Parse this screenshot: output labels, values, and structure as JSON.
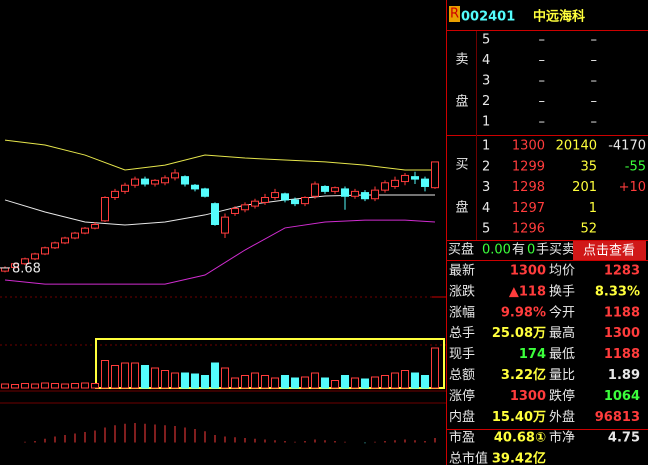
{
  "chart": {
    "price_ylim": [
      7.78,
      19.6
    ],
    "candles": [
      [
        8.55,
        8.68,
        8.75,
        8.5
      ],
      [
        8.7,
        8.85,
        8.9,
        8.65
      ],
      [
        8.85,
        9.05,
        9.1,
        8.8
      ],
      [
        9.05,
        9.25,
        9.3,
        9.0
      ],
      [
        9.25,
        9.5,
        9.55,
        9.2
      ],
      [
        9.5,
        9.7,
        9.75,
        9.45
      ],
      [
        9.7,
        9.9,
        9.95,
        9.65
      ],
      [
        9.9,
        10.1,
        10.15,
        9.85
      ],
      [
        10.1,
        10.3,
        10.35,
        10.05
      ],
      [
        10.3,
        10.45,
        10.55,
        10.25
      ],
      [
        10.6,
        11.55,
        11.6,
        10.55
      ],
      [
        11.55,
        11.8,
        11.9,
        11.45
      ],
      [
        11.8,
        12.05,
        12.15,
        11.7
      ],
      [
        12.05,
        12.3,
        12.4,
        11.95
      ],
      [
        12.3,
        12.1,
        12.4,
        12.0
      ],
      [
        12.1,
        12.25,
        12.3,
        12.0
      ],
      [
        12.15,
        12.35,
        12.45,
        12.05
      ],
      [
        12.35,
        12.55,
        12.7,
        12.25
      ],
      [
        12.4,
        12.1,
        12.45,
        12.0
      ],
      [
        12.05,
        11.9,
        12.1,
        11.8
      ],
      [
        11.9,
        11.6,
        11.95,
        11.55
      ],
      [
        11.3,
        10.45,
        11.35,
        10.4
      ],
      [
        10.1,
        10.75,
        10.9,
        9.9
      ],
      [
        10.9,
        11.1,
        11.2,
        10.8
      ],
      [
        11.05,
        11.25,
        11.35,
        10.95
      ],
      [
        11.2,
        11.4,
        11.5,
        11.1
      ],
      [
        11.35,
        11.55,
        11.7,
        11.25
      ],
      [
        11.55,
        11.75,
        11.9,
        11.45
      ],
      [
        11.7,
        11.45,
        11.75,
        11.35
      ],
      [
        11.45,
        11.3,
        11.55,
        11.2
      ],
      [
        11.3,
        11.55,
        11.6,
        11.2
      ],
      [
        11.6,
        12.1,
        12.2,
        11.5
      ],
      [
        12.0,
        11.8,
        12.05,
        11.7
      ],
      [
        11.8,
        11.95,
        12.0,
        11.7
      ],
      [
        11.9,
        11.6,
        12.0,
        11.05
      ],
      [
        11.6,
        11.8,
        11.9,
        11.5
      ],
      [
        11.75,
        11.5,
        11.85,
        11.4
      ],
      [
        11.5,
        11.85,
        12.0,
        11.4
      ],
      [
        11.85,
        12.15,
        12.25,
        11.75
      ],
      [
        12.0,
        12.25,
        12.4,
        11.9
      ],
      [
        12.2,
        12.45,
        12.55,
        12.05
      ],
      [
        12.4,
        12.3,
        12.6,
        12.1
      ],
      [
        12.3,
        12.0,
        12.4,
        11.8
      ],
      [
        11.95,
        13.0,
        13.0,
        11.9
      ]
    ],
    "bands": {
      "x": [
        0,
        4,
        8,
        12,
        16,
        20,
        24,
        28,
        32,
        36,
        40,
        43
      ],
      "upper": {
        "color": "#e6e64c",
        "values": [
          13.89,
          13.69,
          13.28,
          12.67,
          12.87,
          13.28,
          13.16,
          13.08,
          13.0,
          12.87,
          12.67,
          12.67
        ]
      },
      "middle": {
        "color": "#e8e8e8",
        "values": [
          11.45,
          10.96,
          10.55,
          10.43,
          10.55,
          10.84,
          11.24,
          11.45,
          11.61,
          11.65,
          11.65,
          11.65
        ]
      },
      "lower": {
        "color": "#d02cd0",
        "values": [
          8.19,
          8.02,
          8.02,
          8.02,
          8.02,
          8.39,
          9.41,
          10.31,
          10.55,
          10.63,
          10.63,
          10.55
        ]
      }
    },
    "low_marker": {
      "value": 8.68,
      "label": "8.68"
    },
    "volume_ylim": [
      0,
      100
    ],
    "volume": [
      8,
      7,
      9,
      8,
      10,
      9,
      8,
      9,
      10,
      9,
      55,
      45,
      50,
      50,
      45,
      40,
      35,
      30,
      30,
      28,
      25,
      50,
      40,
      20,
      25,
      30,
      25,
      20,
      25,
      20,
      22,
      30,
      20,
      15,
      25,
      20,
      18,
      22,
      25,
      30,
      35,
      30,
      25,
      80
    ],
    "macd_ylim": [
      -0.3,
      0.5
    ],
    "macd": [
      0.0,
      0.0,
      0.01,
      0.02,
      0.05,
      0.08,
      0.1,
      0.12,
      0.14,
      0.16,
      0.2,
      0.23,
      0.25,
      0.26,
      0.25,
      0.24,
      0.23,
      0.22,
      0.2,
      0.18,
      0.15,
      0.1,
      0.08,
      0.07,
      0.06,
      0.05,
      0.04,
      0.03,
      0.02,
      0.01,
      0.02,
      0.04,
      0.03,
      0.02,
      0.01,
      0.0,
      -0.01,
      0.01,
      0.02,
      0.03,
      0.04,
      0.03,
      0.02,
      0.06
    ]
  },
  "quote": {
    "badge": "R",
    "code": "002401",
    "name": "中远海科",
    "sell_label": [
      "卖",
      "盘"
    ],
    "sell": [
      [
        "5",
        "–",
        "–"
      ],
      [
        "4",
        "–",
        "–"
      ],
      [
        "3",
        "–",
        "–"
      ],
      [
        "2",
        "–",
        "–"
      ],
      [
        "1",
        "–",
        "–"
      ]
    ],
    "buy_label": [
      "买",
      "盘"
    ],
    "buy": [
      [
        "1",
        "1300",
        "20140",
        "-4170"
      ],
      [
        "2",
        "1299",
        "35",
        "-55"
      ],
      [
        "3",
        "1298",
        "201",
        "+10"
      ],
      [
        "4",
        "1297",
        "1",
        ""
      ],
      [
        "5",
        "1296",
        "52",
        ""
      ]
    ],
    "order_bar": [
      "买盘",
      "0.00",
      "有",
      "0",
      "手买卖"
    ],
    "button": "点击查看",
    "stats": [
      {
        "l1": "最新",
        "v1": "1300",
        "c1": "#ff3c3c",
        "l2": "均价",
        "v2": "1283",
        "c2": "#ff3c3c"
      },
      {
        "l1": "涨跌",
        "v1": "▲118",
        "c1": "#ff3c3c",
        "l2": "换手",
        "v2": "8.33%",
        "c2": "#ffff3c"
      },
      {
        "l1": "涨幅",
        "v1": "9.98%",
        "c1": "#ff3c3c",
        "l2": "今开",
        "v2": "1188",
        "c2": "#ff3c3c"
      },
      {
        "l1": "总手",
        "v1": "25.08万",
        "c1": "#ffff3c",
        "l2": "最高",
        "v2": "1300",
        "c2": "#ff3c3c"
      },
      {
        "l1": "现手",
        "v1": "174",
        "c1": "#3cff3c",
        "l2": "最低",
        "v2": "1188",
        "c2": "#ff3c3c"
      },
      {
        "l1": "总额",
        "v1": "3.22亿",
        "c1": "#ffff3c",
        "l2": "量比",
        "v2": "1.89",
        "c2": "#e8e8e8"
      },
      {
        "l1": "涨停",
        "v1": "1300",
        "c1": "#ff3c3c",
        "l2": "跌停",
        "v2": "1064",
        "c2": "#3cff3c"
      },
      {
        "l1": "内盘",
        "v1": "15.40万",
        "c1": "#ffff3c",
        "l2": "外盘",
        "v2": "96813",
        "c2": "#ff3c3c"
      },
      {
        "l1": "市盈",
        "v1": "40.68①",
        "c1": "#ffff3c",
        "l2": "市净",
        "v2": "4.75",
        "c2": "#e8e8e8"
      },
      {
        "l1": "总市值",
        "v1": "39.42亿",
        "c1": "#ffff3c",
        "l2": "",
        "v2": "",
        "c2": "#e8e8e8"
      }
    ]
  }
}
